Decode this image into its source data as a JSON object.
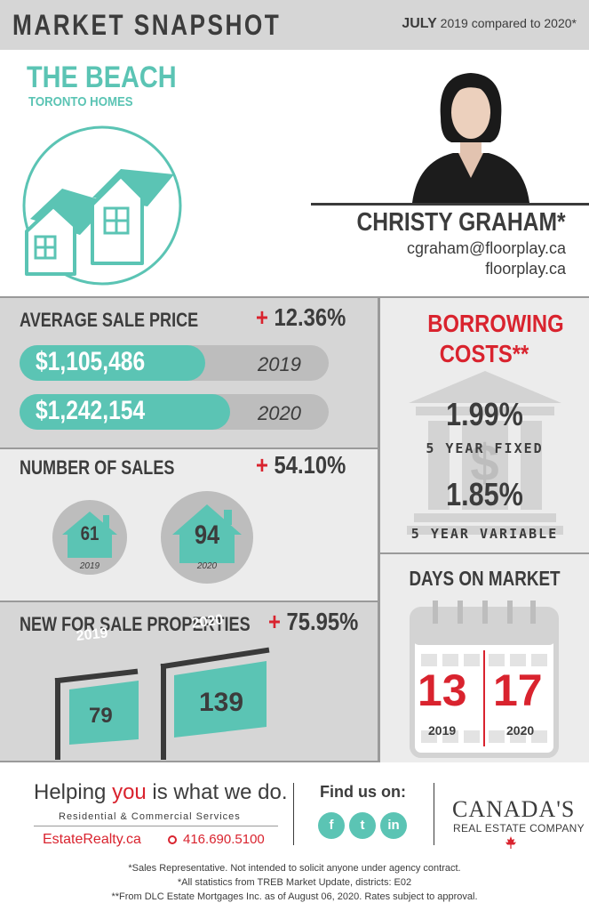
{
  "header": {
    "title": "MARKET SNAPSHOT",
    "month": "JULY",
    "comparison": "2019 compared to 2020*"
  },
  "area": {
    "name": "THE BEACH",
    "sub": "TORONTO HOMES"
  },
  "agent": {
    "name": "CHRISTY GRAHAM*",
    "email": "cgraham@floorplay.ca",
    "website": "floorplay.ca"
  },
  "average_sale_price": {
    "label": "AVERAGE SALE PRICE",
    "sign": "+",
    "change": "12.36%",
    "rows": [
      {
        "value": "$1,105,486",
        "year": "2019",
        "fill": 0.6
      },
      {
        "value": "$1,242,154",
        "year": "2020",
        "fill": 0.68
      }
    ]
  },
  "number_of_sales": {
    "label": "NUMBER OF SALES",
    "sign": "+",
    "change": "54.10%",
    "items": [
      {
        "value": "61",
        "year": "2019"
      },
      {
        "value": "94",
        "year": "2020"
      }
    ]
  },
  "new_for_sale": {
    "label": "NEW FOR SALE PROPERTIES",
    "sign": "+",
    "change": "75.95%",
    "items": [
      {
        "value": "79",
        "year": "2019"
      },
      {
        "value": "139",
        "year": "2020"
      }
    ]
  },
  "borrowing": {
    "title": "BORROWING COSTS**",
    "fixed_rate": "1.99%",
    "fixed_label": "5 YEAR FIXED",
    "variable_rate": "1.85%",
    "variable_label": "5 YEAR VARIABLE",
    "bank_symbol": "$"
  },
  "days_on_market": {
    "title": "DAYS ON MARKET",
    "items": [
      {
        "value": "13",
        "year": "2019"
      },
      {
        "value": "17",
        "year": "2020"
      }
    ]
  },
  "footer": {
    "tagline_pre": "Helping ",
    "tagline_you": "you",
    "tagline_post": " is what we do.",
    "services": "Residential & Commercial Services",
    "website": "EstateRealty.ca",
    "phone": "416.690.5100",
    "find_us": "Find us on:",
    "social": [
      {
        "glyph": "f",
        "icon": "facebook-icon"
      },
      {
        "glyph": "t",
        "icon": "twitter-icon"
      },
      {
        "glyph": "in",
        "icon": "linkedin-icon"
      }
    ],
    "brand_line1": "CANADA'S",
    "brand_line2": "REAL ESTATE COMPANY",
    "notes": [
      "*Sales Representative. Not intended to solicit anyone under agency contract.",
      "*All statistics from TREB Market Update, districts: E02",
      "**From DLC Estate Mortgages Inc. as of August 06, 2020. Rates subject to approval."
    ]
  },
  "colors": {
    "teal": "#5bc4b4",
    "red": "#d9232e",
    "dark": "#3c3c3c",
    "grey": "#d6d6d6"
  }
}
